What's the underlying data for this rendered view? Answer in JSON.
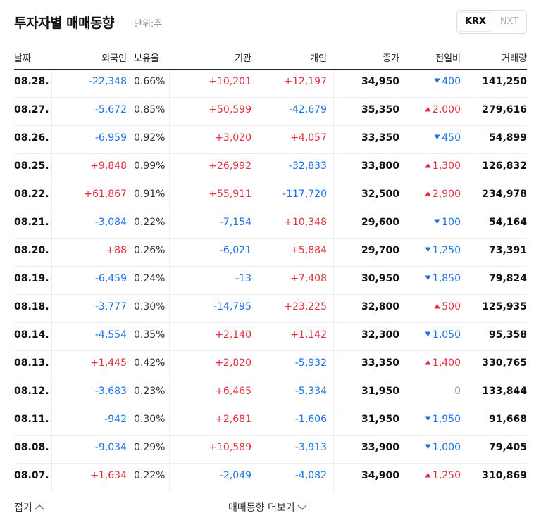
{
  "header": {
    "title": "투자자별 매매동향",
    "unit": "단위:주",
    "tabs": [
      "KRX",
      "NXT"
    ],
    "active_tab": 0
  },
  "table": {
    "columns": [
      "날짜",
      "외국인",
      "보유율",
      "기관",
      "개인",
      "종가",
      "전일비",
      "거래량"
    ],
    "rows": [
      {
        "date": "08.28.",
        "foreign": "-22,348",
        "holding": "0.66%",
        "institution": "+10,201",
        "individual": "+12,197",
        "close": "34,950",
        "change": "400",
        "direction": "down",
        "volume": "141,250"
      },
      {
        "date": "08.27.",
        "foreign": "-5,672",
        "holding": "0.85%",
        "institution": "+50,599",
        "individual": "-42,679",
        "close": "35,350",
        "change": "2,000",
        "direction": "up",
        "volume": "279,616"
      },
      {
        "date": "08.26.",
        "foreign": "-6,959",
        "holding": "0.92%",
        "institution": "+3,020",
        "individual": "+4,057",
        "close": "33,350",
        "change": "450",
        "direction": "down",
        "volume": "54,899"
      },
      {
        "date": "08.25.",
        "foreign": "+9,848",
        "holding": "0.99%",
        "institution": "+26,992",
        "individual": "-32,833",
        "close": "33,800",
        "change": "1,300",
        "direction": "up",
        "volume": "126,832"
      },
      {
        "date": "08.22.",
        "foreign": "+61,867",
        "holding": "0.91%",
        "institution": "+55,911",
        "individual": "-117,720",
        "close": "32,500",
        "change": "2,900",
        "direction": "up",
        "volume": "234,978"
      },
      {
        "date": "08.21.",
        "foreign": "-3,084",
        "holding": "0.22%",
        "institution": "-7,154",
        "individual": "+10,348",
        "close": "29,600",
        "change": "100",
        "direction": "down",
        "volume": "54,164"
      },
      {
        "date": "08.20.",
        "foreign": "+88",
        "holding": "0.26%",
        "institution": "-6,021",
        "individual": "+5,884",
        "close": "29,700",
        "change": "1,250",
        "direction": "down",
        "volume": "73,391"
      },
      {
        "date": "08.19.",
        "foreign": "-6,459",
        "holding": "0.24%",
        "institution": "-13",
        "individual": "+7,408",
        "close": "30,950",
        "change": "1,850",
        "direction": "down",
        "volume": "79,824"
      },
      {
        "date": "08.18.",
        "foreign": "-3,777",
        "holding": "0.30%",
        "institution": "-14,795",
        "individual": "+23,225",
        "close": "32,800",
        "change": "500",
        "direction": "up",
        "volume": "125,935"
      },
      {
        "date": "08.14.",
        "foreign": "-4,554",
        "holding": "0.35%",
        "institution": "+2,140",
        "individual": "+1,142",
        "close": "32,300",
        "change": "1,050",
        "direction": "down",
        "volume": "95,358"
      },
      {
        "date": "08.13.",
        "foreign": "+1,445",
        "holding": "0.42%",
        "institution": "+2,820",
        "individual": "-5,932",
        "close": "33,350",
        "change": "1,400",
        "direction": "up",
        "volume": "330,765"
      },
      {
        "date": "08.12.",
        "foreign": "-3,683",
        "holding": "0.23%",
        "institution": "+6,465",
        "individual": "-5,334",
        "close": "31,950",
        "change": "0",
        "direction": "flat",
        "volume": "133,844"
      },
      {
        "date": "08.11.",
        "foreign": "-942",
        "holding": "0.30%",
        "institution": "+2,681",
        "individual": "-1,606",
        "close": "31,950",
        "change": "1,950",
        "direction": "down",
        "volume": "91,668"
      },
      {
        "date": "08.08.",
        "foreign": "-9,034",
        "holding": "0.29%",
        "institution": "+10,589",
        "individual": "-3,913",
        "close": "33,900",
        "change": "1,000",
        "direction": "down",
        "volume": "79,405"
      },
      {
        "date": "08.07.",
        "foreign": "+1,634",
        "holding": "0.22%",
        "institution": "-2,049",
        "individual": "-4,082",
        "close": "34,900",
        "change": "1,250",
        "direction": "up",
        "volume": "310,869"
      }
    ]
  },
  "footer": {
    "collapse": "접기",
    "more": "매매동향 더보기"
  }
}
